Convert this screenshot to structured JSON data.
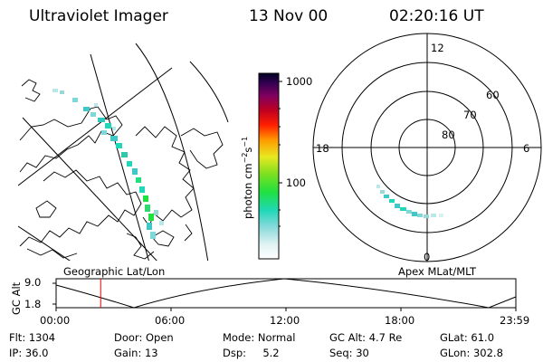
{
  "header": {
    "title": "Ultraviolet Imager",
    "date": "13 Nov 00",
    "time": "02:20:16 UT"
  },
  "left_panel": {
    "label": "Geographic Lat/Lon"
  },
  "right_panel": {
    "label": "Apex MLat/MLT",
    "mlt_labels": {
      "top": "12",
      "left": "18",
      "right": "6",
      "bottom": "0"
    },
    "lat_labels": [
      "60",
      "70",
      "80"
    ]
  },
  "colorbar": {
    "unit_label": "photon cm",
    "unit_sup1": "−2",
    "unit_mid": "s",
    "unit_sup2": "−1",
    "ticks": [
      "1000",
      "100"
    ]
  },
  "altitude_plot": {
    "axis_label": "GC Alt",
    "y_ticks": [
      "9.0",
      "1.8"
    ],
    "x_ticks": [
      "00:00",
      "06:00",
      "12:00",
      "18:00",
      "23:59"
    ],
    "current_time_fraction": 0.097,
    "current_time_color": "#ff0000"
  },
  "info": {
    "row1": [
      {
        "key": "Flt:",
        "value": "1304"
      },
      {
        "key": "Door:",
        "value": "Open"
      },
      {
        "key": "Mode:",
        "value": "Normal"
      },
      {
        "key": "GC Alt:",
        "value": "4.7 Re"
      },
      {
        "key": "GLat:",
        "value": "61.0"
      }
    ],
    "row2": [
      {
        "key": "IP:",
        "value": "36.0"
      },
      {
        "key": "Gain:",
        "value": "13"
      },
      {
        "key": "Dsp:",
        "value": "5.2"
      },
      {
        "key": "Seq:",
        "value": "30"
      },
      {
        "key": "GLon:",
        "value": "302.8"
      }
    ]
  }
}
